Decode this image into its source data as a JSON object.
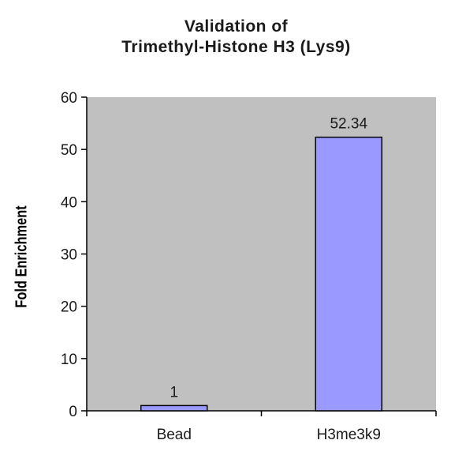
{
  "chart_data": {
    "type": "bar",
    "title": [
      "Validation of",
      "Trimethyl-Histone H3 (Lys9)"
    ],
    "xlabel": "",
    "ylabel": "Fold Enrichment",
    "categories": [
      "Bead",
      "H3me3k9"
    ],
    "values": [
      1,
      52.34
    ],
    "data_labels": [
      "1",
      "52.34"
    ],
    "ylim": [
      0,
      60
    ],
    "yticks": [
      0,
      10,
      20,
      30,
      40,
      50,
      60
    ],
    "grid": false,
    "legend": "none",
    "colors": {
      "plot_background": "#c0c0c0",
      "bar_fill": "#9999ff",
      "bar_stroke": "#000000",
      "axis": "#000000",
      "text": "#1a1a1a"
    }
  }
}
